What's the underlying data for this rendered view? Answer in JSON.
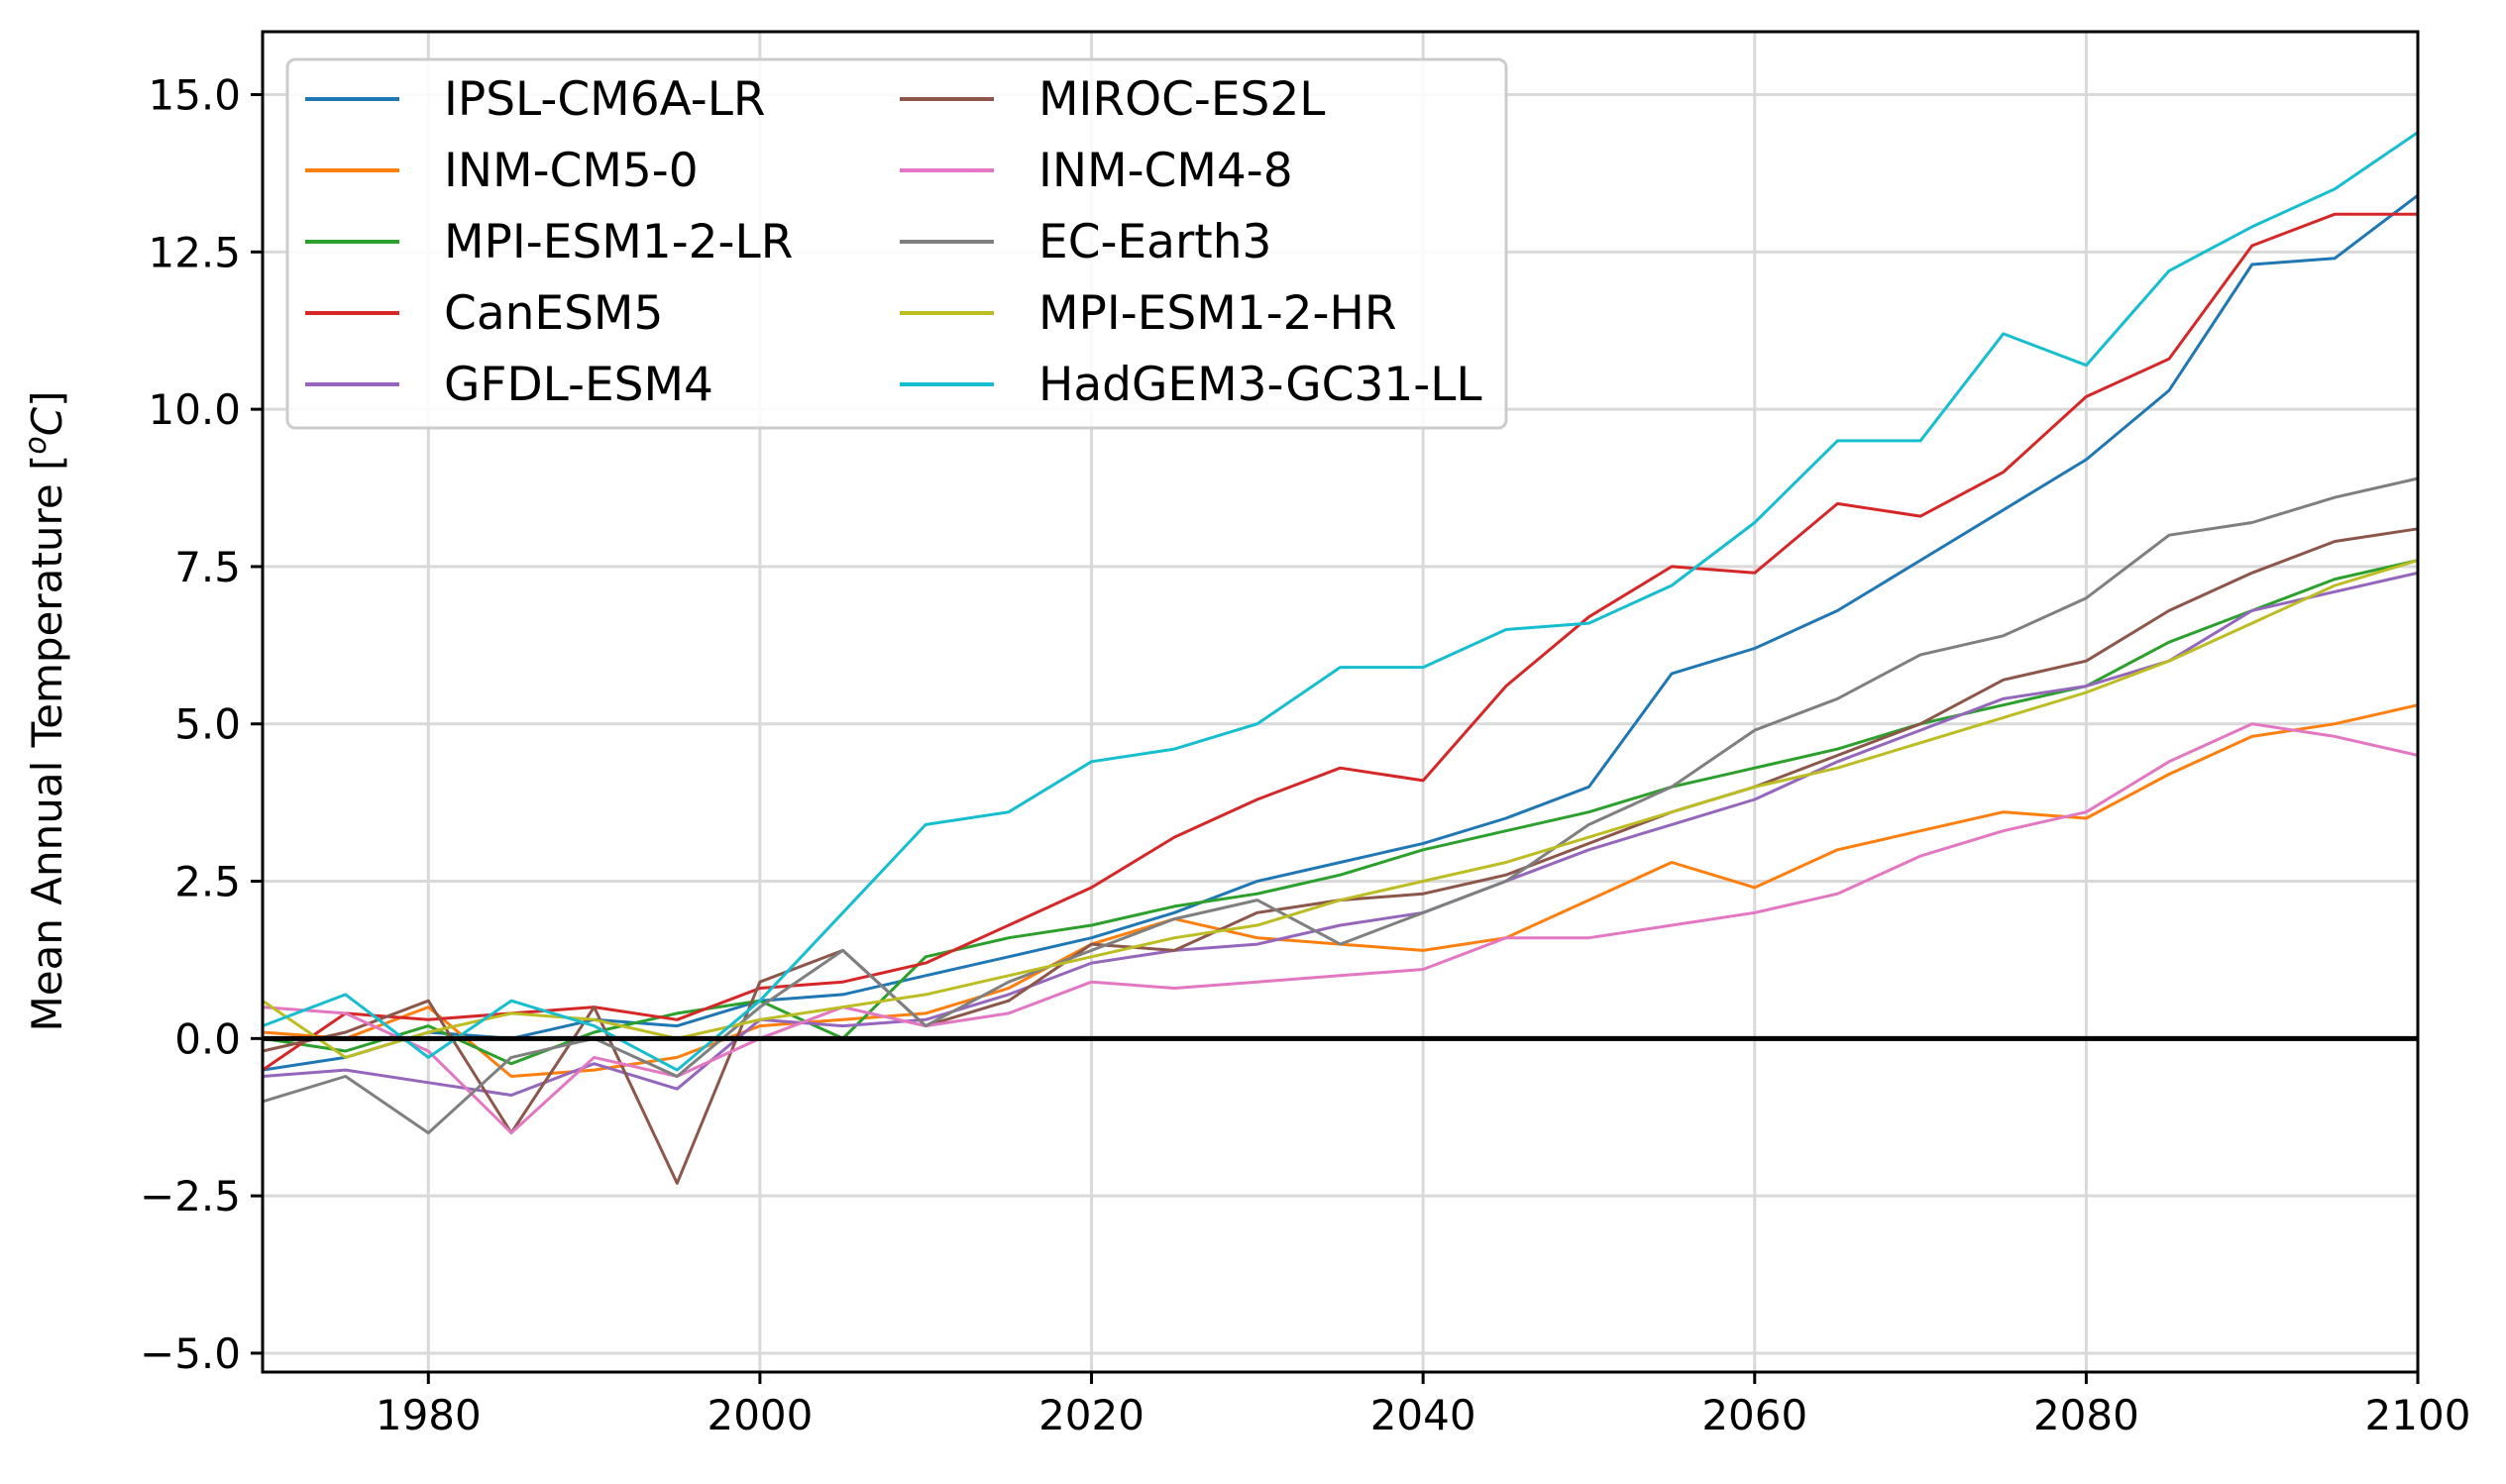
{
  "chart_data": {
    "type": "line",
    "title": "",
    "xlabel": "",
    "ylabel": "Mean Annual Temperature [°C]",
    "ylabel_parts": {
      "prefix": "Mean Annual Temperature [",
      "sup": "o",
      "unit": "C",
      "suffix": "]"
    },
    "xlim": [
      1970,
      2100
    ],
    "ylim": [
      -5.3,
      16.0
    ],
    "xticks": [
      1980,
      2000,
      2020,
      2040,
      2060,
      2080,
      2100
    ],
    "xtick_labels": [
      "1980",
      "2000",
      "2020",
      "2040",
      "2060",
      "2080",
      "2100"
    ],
    "yticks": [
      -5.0,
      -2.5,
      0.0,
      2.5,
      5.0,
      7.5,
      10.0,
      12.5,
      15.0
    ],
    "ytick_labels": [
      "−5.0",
      "−2.5",
      "0.0",
      "2.5",
      "5.0",
      "7.5",
      "10.0",
      "12.5",
      "15.0"
    ],
    "grid": true,
    "reference_line": {
      "y": 0.0,
      "color": "#000000"
    },
    "legend": {
      "position": "top-left",
      "columns": 2
    },
    "series": [
      {
        "name": "IPSL-CM6A-LR",
        "color": "#1f77b4",
        "x": [
          1970,
          1975,
          1980,
          1985,
          1990,
          1995,
          2000,
          2005,
          2010,
          2015,
          2020,
          2025,
          2030,
          2035,
          2040,
          2045,
          2050,
          2055,
          2060,
          2065,
          2070,
          2075,
          2080,
          2085,
          2090,
          2095,
          2100
        ],
        "y": [
          -0.5,
          -0.3,
          0.1,
          0.0,
          0.3,
          0.2,
          0.6,
          0.7,
          1.0,
          1.3,
          1.6,
          2.0,
          2.5,
          2.8,
          3.1,
          3.5,
          4.0,
          5.8,
          6.2,
          6.8,
          7.6,
          8.4,
          9.2,
          10.3,
          12.3,
          12.4,
          13.4
        ]
      },
      {
        "name": "INM-CM5-0",
        "color": "#ff7f0e",
        "x": [
          1970,
          1975,
          1980,
          1985,
          1990,
          1995,
          2000,
          2005,
          2010,
          2015,
          2020,
          2025,
          2030,
          2035,
          2040,
          2045,
          2050,
          2055,
          2060,
          2065,
          2070,
          2075,
          2080,
          2085,
          2090,
          2095,
          2100
        ],
        "y": [
          0.1,
          0.0,
          0.5,
          -0.6,
          -0.5,
          -0.3,
          0.2,
          0.3,
          0.4,
          0.8,
          1.5,
          1.9,
          1.6,
          1.5,
          1.4,
          1.6,
          2.2,
          2.8,
          2.4,
          3.0,
          3.3,
          3.6,
          3.5,
          4.2,
          4.8,
          5.0,
          5.3
        ]
      },
      {
        "name": "MPI-ESM1-2-LR",
        "color": "#2ca02c",
        "x": [
          1970,
          1975,
          1980,
          1985,
          1990,
          1995,
          2000,
          2005,
          2010,
          2015,
          2020,
          2025,
          2030,
          2035,
          2040,
          2045,
          2050,
          2055,
          2060,
          2065,
          2070,
          2075,
          2080,
          2085,
          2090,
          2095,
          2100
        ],
        "y": [
          0.0,
          -0.2,
          0.2,
          -0.4,
          0.1,
          0.4,
          0.6,
          0.0,
          1.3,
          1.6,
          1.8,
          2.1,
          2.3,
          2.6,
          3.0,
          3.3,
          3.6,
          4.0,
          4.3,
          4.6,
          5.0,
          5.3,
          5.6,
          6.3,
          6.8,
          7.3,
          7.6
        ]
      },
      {
        "name": "CanESM5",
        "color": "#d62728",
        "x": [
          1970,
          1975,
          1980,
          1985,
          1990,
          1995,
          2000,
          2005,
          2010,
          2015,
          2020,
          2025,
          2030,
          2035,
          2040,
          2045,
          2050,
          2055,
          2060,
          2065,
          2070,
          2075,
          2080,
          2085,
          2090,
          2095,
          2100
        ],
        "y": [
          -0.5,
          0.4,
          0.3,
          0.4,
          0.5,
          0.3,
          0.8,
          0.9,
          1.2,
          1.8,
          2.4,
          3.2,
          3.8,
          4.3,
          4.1,
          5.6,
          6.7,
          7.5,
          7.4,
          8.5,
          8.3,
          9.0,
          10.2,
          10.8,
          12.6,
          13.1,
          13.1
        ]
      },
      {
        "name": "GFDL-ESM4",
        "color": "#9467bd",
        "x": [
          1970,
          1975,
          1980,
          1985,
          1990,
          1995,
          2000,
          2005,
          2010,
          2015,
          2020,
          2025,
          2030,
          2035,
          2040,
          2045,
          2050,
          2055,
          2060,
          2065,
          2070,
          2075,
          2080,
          2085,
          2090,
          2095,
          2100
        ],
        "y": [
          -0.6,
          -0.5,
          -0.7,
          -0.9,
          -0.4,
          -0.8,
          0.3,
          0.2,
          0.3,
          0.7,
          1.2,
          1.4,
          1.5,
          1.8,
          2.0,
          2.5,
          3.0,
          3.4,
          3.8,
          4.4,
          4.9,
          5.4,
          5.6,
          6.0,
          6.8,
          7.1,
          7.4
        ]
      },
      {
        "name": "MIROC-ES2L",
        "color": "#8c564b",
        "x": [
          1970,
          1975,
          1980,
          1985,
          1990,
          1995,
          2000,
          2005,
          2010,
          2015,
          2020,
          2025,
          2030,
          2035,
          2040,
          2045,
          2050,
          2055,
          2060,
          2065,
          2070,
          2075,
          2080,
          2085,
          2090,
          2095,
          2100
        ],
        "y": [
          -0.2,
          0.1,
          0.6,
          -1.5,
          0.5,
          -2.3,
          0.9,
          1.4,
          0.2,
          0.6,
          1.5,
          1.4,
          2.0,
          2.2,
          2.3,
          2.6,
          3.1,
          3.6,
          4.0,
          4.5,
          5.0,
          5.7,
          6.0,
          6.8,
          7.4,
          7.9,
          8.1
        ]
      },
      {
        "name": "INM-CM4-8",
        "color": "#e377c2",
        "x": [
          1970,
          1975,
          1980,
          1985,
          1990,
          1995,
          2000,
          2005,
          2010,
          2015,
          2020,
          2025,
          2030,
          2035,
          2040,
          2045,
          2050,
          2055,
          2060,
          2065,
          2070,
          2075,
          2080,
          2085,
          2090,
          2095,
          2100
        ],
        "y": [
          0.5,
          0.4,
          -0.2,
          -1.5,
          -0.3,
          -0.6,
          0.0,
          0.5,
          0.2,
          0.4,
          0.9,
          0.8,
          0.9,
          1.0,
          1.1,
          1.6,
          1.6,
          1.8,
          2.0,
          2.3,
          2.9,
          3.3,
          3.6,
          4.4,
          5.0,
          4.8,
          4.5
        ]
      },
      {
        "name": "EC-Earth3",
        "color": "#7f7f7f",
        "x": [
          1970,
          1975,
          1980,
          1985,
          1990,
          1995,
          2000,
          2005,
          2010,
          2015,
          2020,
          2025,
          2030,
          2035,
          2040,
          2045,
          2050,
          2055,
          2060,
          2065,
          2070,
          2075,
          2080,
          2085,
          2090,
          2095,
          2100
        ],
        "y": [
          -1.0,
          -0.6,
          -1.5,
          -0.3,
          0.0,
          -0.6,
          0.5,
          1.4,
          0.2,
          0.9,
          1.4,
          1.9,
          2.2,
          1.5,
          2.0,
          2.5,
          3.4,
          4.0,
          4.9,
          5.4,
          6.1,
          6.4,
          7.0,
          8.0,
          8.2,
          8.6,
          8.9
        ]
      },
      {
        "name": "MPI-ESM1-2-HR",
        "color": "#bcbd22",
        "x": [
          1970,
          1975,
          1980,
          1985,
          1990,
          1995,
          2000,
          2005,
          2010,
          2015,
          2020,
          2025,
          2030,
          2035,
          2040,
          2045,
          2050,
          2055,
          2060,
          2065,
          2070,
          2075,
          2080,
          2085,
          2090,
          2095,
          2100
        ],
        "y": [
          0.6,
          -0.3,
          0.1,
          0.4,
          0.3,
          0.0,
          0.3,
          0.5,
          0.7,
          1.0,
          1.3,
          1.6,
          1.8,
          2.2,
          2.5,
          2.8,
          3.2,
          3.6,
          4.0,
          4.3,
          4.7,
          5.1,
          5.5,
          6.0,
          6.6,
          7.2,
          7.6
        ]
      },
      {
        "name": "HadGEM3-GC31-LL",
        "color": "#17becf",
        "x": [
          1970,
          1975,
          1980,
          1985,
          1990,
          1995,
          2000,
          2005,
          2010,
          2015,
          2020,
          2025,
          2030,
          2035,
          2040,
          2045,
          2050,
          2055,
          2060,
          2065,
          2070,
          2075,
          2080,
          2085,
          2090,
          2095,
          2100
        ],
        "y": [
          0.2,
          0.7,
          -0.3,
          0.6,
          0.2,
          -0.5,
          0.6,
          2.0,
          3.4,
          3.6,
          4.4,
          4.6,
          5.0,
          5.9,
          5.9,
          6.5,
          6.6,
          7.2,
          8.2,
          9.5,
          9.5,
          11.2,
          10.7,
          12.2,
          12.9,
          13.5,
          14.4
        ]
      }
    ]
  }
}
